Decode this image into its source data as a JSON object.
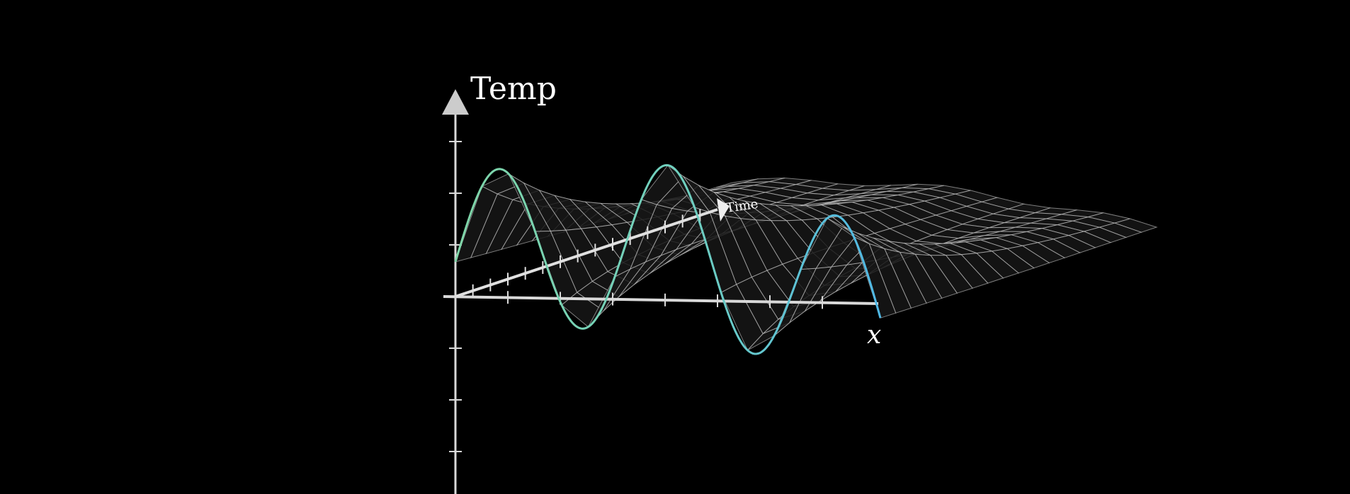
{
  "figure": {
    "temp_axis_label": "Temp",
    "x_axis_label": "x",
    "time_axis_label": "Time",
    "colors": {
      "background": "#000000",
      "axis": "#d9d9d9",
      "grid": "#e6e6e6",
      "surface_fill": "#1a1a1a",
      "curve_start": "#7fd6a8",
      "curve_end": "#5bc2e7"
    }
  }
}
